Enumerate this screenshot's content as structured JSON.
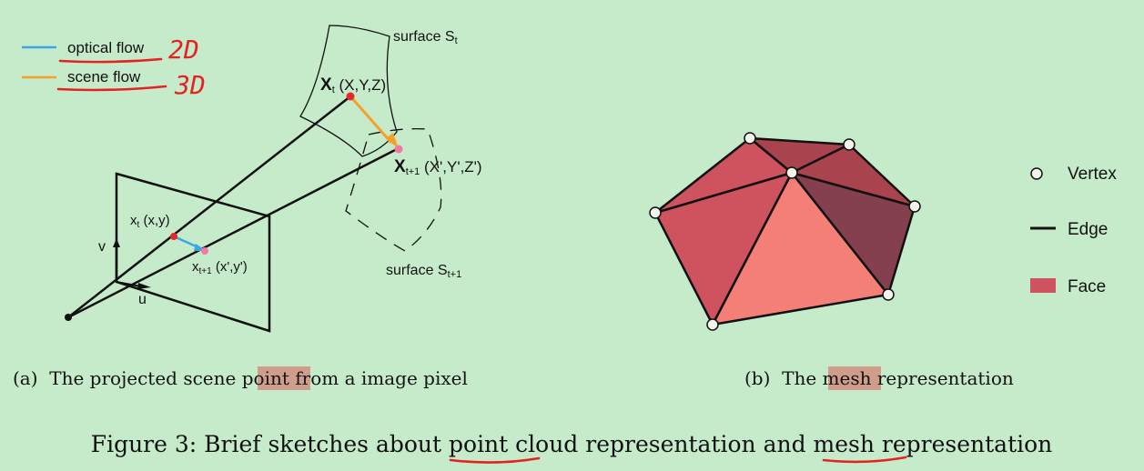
{
  "legend": {
    "optical_flow": "optical flow",
    "scene_flow": "scene flow",
    "optical_color": "#3aa6e8",
    "scene_color": "#f5a02a"
  },
  "annotations": {
    "note_2d": "2D",
    "note_3d": "3D",
    "ink_color": "#e52222",
    "highlight_color": "#cf9d8a"
  },
  "panel_a": {
    "surface_t": "surface S",
    "surface_t_sub": "t",
    "surface_t1": "surface S",
    "surface_t1_sub": "t+1",
    "point_Xt": "X",
    "point_Xt_sub": "t",
    "point_Xt_coords": " (X,Y,Z)",
    "point_Xt1": "X",
    "point_Xt1_sub": "t+1",
    "point_Xt1_coords": " (X',Y',Z')",
    "pixel_xt": "x",
    "pixel_xt_sub": "t",
    "pixel_xt_coords": " (x,y)",
    "pixel_xt1": "x",
    "pixel_xt1_sub": "t+1",
    "pixel_xt1_coords": " (x',y')",
    "axis_v": "v",
    "axis_u": "u",
    "caption_prefix": "(a)  The projected scene ",
    "caption_highlight": "point",
    "caption_suffix": " from a image pixel"
  },
  "panel_b": {
    "legend_vertex": "Vertex",
    "legend_edge": "Edge",
    "legend_face": "Face",
    "face_colors": [
      "#cf535e",
      "#f47f77",
      "#84404f",
      "#a9434d"
    ],
    "caption_prefix": "(b)  The ",
    "caption_highlight": "mesh",
    "caption_suffix": " representation"
  },
  "figure_caption": "Figure 3: Brief sketches about point cloud representation and mesh representation"
}
